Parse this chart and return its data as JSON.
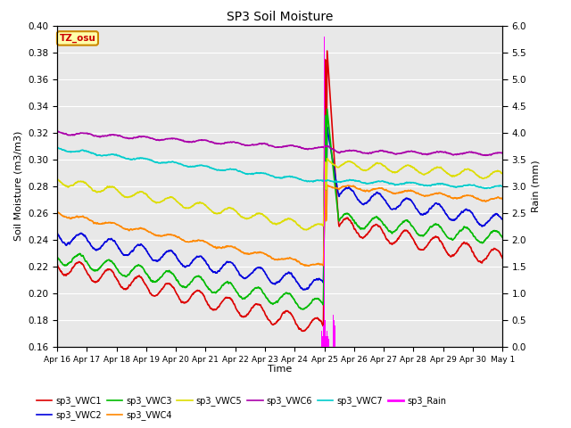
{
  "title": "SP3 Soil Moisture",
  "ylabel_left": "Soil Moisture (m3/m3)",
  "ylabel_right": "Rain (mm)",
  "xlabel": "Time",
  "xlim_days": [
    0,
    15
  ],
  "ylim_left": [
    0.16,
    0.4
  ],
  "ylim_right": [
    0.0,
    6.0
  ],
  "yticks_left": [
    0.16,
    0.18,
    0.2,
    0.22,
    0.24,
    0.26,
    0.28,
    0.3,
    0.32,
    0.34,
    0.36,
    0.38,
    0.4
  ],
  "yticks_right": [
    0.0,
    0.5,
    1.0,
    1.5,
    2.0,
    2.5,
    3.0,
    3.5,
    4.0,
    4.5,
    5.0,
    5.5,
    6.0
  ],
  "xtick_labels": [
    "Apr 16",
    "Apr 17",
    "Apr 18",
    "Apr 19",
    "Apr 20",
    "Apr 21",
    "Apr 22",
    "Apr 23",
    "Apr 24",
    "Apr 25",
    "Apr 26",
    "Apr 27",
    "Apr 28",
    "Apr 29",
    "Apr 30",
    "May 1"
  ],
  "bg_color": "#e8e8e8",
  "legend_label": "TZ_osu",
  "rain_event_day": 9.0,
  "series_colors": {
    "sp3_VWC1": "#dd0000",
    "sp3_VWC2": "#0000dd",
    "sp3_VWC3": "#00bb00",
    "sp3_VWC4": "#ff8800",
    "sp3_VWC5": "#dddd00",
    "sp3_VWC6": "#aa00aa",
    "sp3_VWC7": "#00cccc",
    "sp3_Rain": "#ff00ff"
  }
}
